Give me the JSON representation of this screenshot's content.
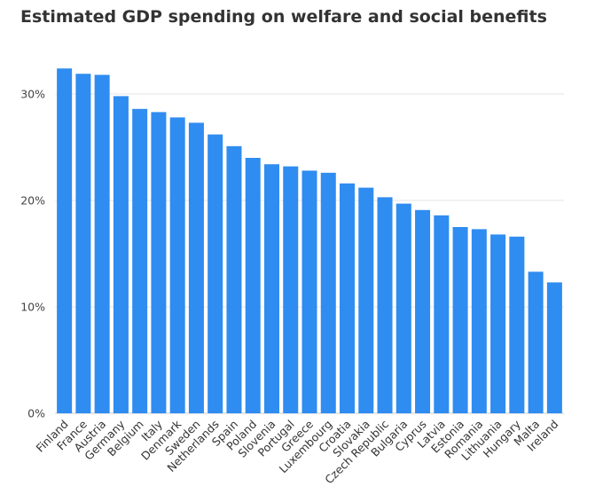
{
  "chart_data": {
    "type": "bar",
    "title": "Estimated GDP spending on welfare and social benefits",
    "xlabel": "",
    "ylabel": "",
    "ylim": [
      0,
      35
    ],
    "y_ticks": [
      {
        "value": 0,
        "label": "0%"
      },
      {
        "value": 10,
        "label": "10%"
      },
      {
        "value": 20,
        "label": "20%"
      },
      {
        "value": 30,
        "label": "30%"
      }
    ],
    "grid": true,
    "bar_color": "#2f8cf0",
    "categories": [
      "Finland",
      "France",
      "Austria",
      "Germany",
      "Belgium",
      "Italy",
      "Denmark",
      "Sweden",
      "Netherlands",
      "Spain",
      "Poland",
      "Slovenia",
      "Portugal",
      "Greece",
      "Luxembourg",
      "Croatia",
      "Slovakia",
      "Czech Republic",
      "Bulgaria",
      "Cyprus",
      "Latvia",
      "Estonia",
      "Romania",
      "Lithuania",
      "Hungary",
      "Malta",
      "Ireland"
    ],
    "values": [
      32.4,
      31.9,
      31.8,
      29.8,
      28.6,
      28.3,
      27.8,
      27.3,
      26.2,
      25.1,
      24.0,
      23.4,
      23.2,
      22.8,
      22.6,
      21.6,
      21.2,
      20.3,
      19.7,
      19.1,
      18.6,
      17.5,
      17.3,
      16.8,
      16.6,
      13.3,
      12.3
    ]
  }
}
